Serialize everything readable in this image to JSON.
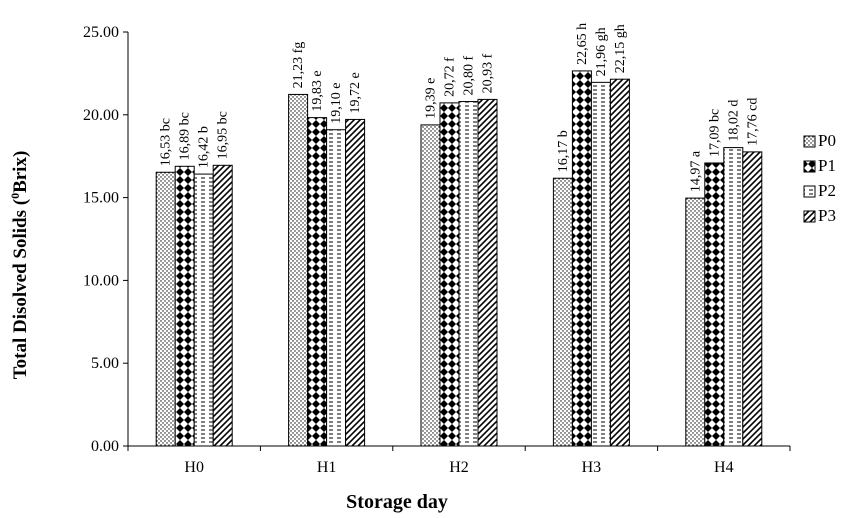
{
  "chart_data": {
    "type": "bar",
    "title": "",
    "xlabel": "Storage day",
    "ylabel_main": "Total Disolved Solids (",
    "ylabel_sup": "0",
    "ylabel_end": "Brix)",
    "ylim": [
      0,
      25
    ],
    "yticks": [
      "0.00",
      "5.00",
      "10.00",
      "15.00",
      "20.00",
      "25.00"
    ],
    "ytick_values": [
      0,
      5,
      10,
      15,
      20,
      25
    ],
    "grid": false,
    "legend_position": "right",
    "categories": [
      "H0",
      "H1",
      "H2",
      "H3",
      "H4"
    ],
    "series": [
      {
        "name": "P0",
        "pattern": "dots",
        "values": [
          16.53,
          21.23,
          19.39,
          16.17,
          14.97
        ],
        "labels": [
          "16,53 bc",
          "21,23 fg",
          "19,39 e",
          "16,17 b",
          "14,97 a"
        ]
      },
      {
        "name": "P1",
        "pattern": "diamonds",
        "values": [
          16.89,
          19.83,
          20.72,
          22.65,
          17.09
        ],
        "labels": [
          "16,89 bc",
          "19,83 e",
          "20,72 f",
          "22,65 h",
          "17,09 bc"
        ]
      },
      {
        "name": "P2",
        "pattern": "dashes",
        "values": [
          16.42,
          19.1,
          20.8,
          21.96,
          18.02
        ],
        "labels": [
          "16,42 b",
          "19,10 e",
          "20,80 f",
          "21,96 gh",
          "18,02 d"
        ]
      },
      {
        "name": "P3",
        "pattern": "diagonal",
        "values": [
          16.95,
          19.72,
          20.93,
          22.15,
          17.76
        ],
        "labels": [
          "16,95 bc",
          "19,72 e",
          "20,93 f",
          "22,15 gh",
          "17,76 cd"
        ]
      }
    ]
  }
}
